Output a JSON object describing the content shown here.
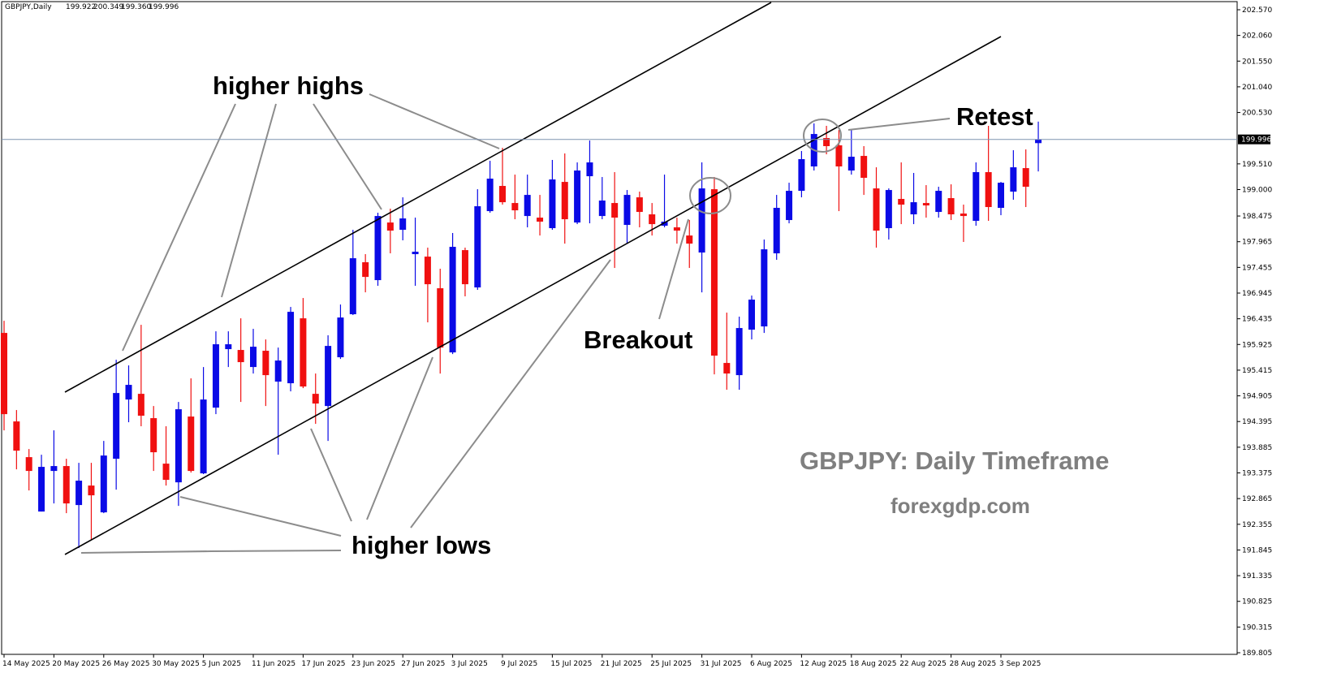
{
  "chart_data": {
    "type": "candlestick",
    "symbol": "GBPJPY,Daily",
    "ohlc_label": [
      "199.922",
      "200.349",
      "199.360",
      "199.996"
    ],
    "categories": [
      "14 May 2025",
      null,
      null,
      null,
      "20 May 2025",
      null,
      null,
      null,
      "26 May 2025",
      null,
      null,
      null,
      "30 May 2025",
      null,
      null,
      null,
      "5 Jun 2025",
      null,
      null,
      null,
      "11 Jun 2025",
      null,
      null,
      null,
      "17 Jun 2025",
      null,
      null,
      null,
      "23 Jun 2025",
      null,
      null,
      null,
      "27 Jun 2025",
      null,
      null,
      null,
      "3 Jul 2025",
      null,
      null,
      null,
      "9 Jul 2025",
      null,
      null,
      null,
      "15 Jul 2025",
      null,
      null,
      null,
      "21 Jul 2025",
      null,
      null,
      null,
      "25 Jul 2025",
      null,
      null,
      null,
      "31 Jul 2025",
      null,
      null,
      null,
      "6 Aug 2025",
      null,
      null,
      null,
      "12 Aug 2025",
      null,
      null,
      null,
      "18 Aug 2025",
      null,
      null,
      null,
      "22 Aug 2025",
      null,
      null,
      null,
      "28 Aug 2025",
      null,
      null,
      null,
      "3 Sep 2025",
      null,
      null,
      null
    ],
    "ohlc": [
      [
        196.154,
        196.396,
        194.22,
        194.542
      ],
      [
        194.397,
        194.623,
        193.446,
        193.817
      ],
      [
        193.688,
        193.849,
        193.027,
        193.414
      ],
      [
        192.608,
        193.736,
        192.608,
        193.495
      ],
      [
        193.414,
        194.22,
        192.769,
        193.511
      ],
      [
        193.511,
        193.656,
        192.576,
        192.769
      ],
      [
        192.737,
        193.575,
        191.883,
        193.221
      ],
      [
        193.124,
        193.575,
        192.044,
        192.93
      ],
      [
        192.592,
        194.01,
        192.576,
        193.72
      ],
      [
        193.656,
        195.622,
        193.043,
        194.961
      ],
      [
        194.832,
        195.509,
        194.381,
        195.123
      ],
      [
        194.945,
        196.315,
        194.301,
        194.51
      ],
      [
        194.462,
        194.703,
        193.414,
        193.785
      ],
      [
        193.559,
        194.301,
        193.124,
        193.237
      ],
      [
        193.188,
        194.784,
        192.721,
        194.639
      ],
      [
        194.494,
        195.252,
        193.382,
        193.414
      ],
      [
        193.366,
        195.477,
        193.35,
        194.832
      ],
      [
        194.671,
        196.186,
        194.542,
        195.929
      ],
      [
        195.832,
        196.186,
        195.477,
        195.929
      ],
      [
        195.816,
        196.444,
        194.784,
        195.574
      ],
      [
        195.477,
        196.235,
        195.348,
        195.88
      ],
      [
        195.8,
        196.025,
        194.703,
        195.316
      ],
      [
        195.187,
        195.864,
        193.736,
        195.606
      ],
      [
        195.155,
        196.67,
        194.994,
        196.573
      ],
      [
        196.444,
        196.847,
        195.058,
        195.09
      ],
      [
        194.945,
        195.348,
        194.349,
        194.752
      ],
      [
        194.703,
        196.106,
        194.01,
        195.896
      ],
      [
        195.671,
        196.718,
        195.638,
        196.46
      ],
      [
        196.525,
        198.201,
        196.509,
        197.637
      ],
      [
        197.557,
        197.718,
        196.96,
        197.266
      ],
      [
        197.202,
        198.54,
        197.089,
        198.475
      ],
      [
        198.346,
        198.62,
        197.734,
        198.185
      ],
      [
        198.201,
        198.846,
        197.992,
        198.427
      ],
      [
        197.718,
        198.443,
        197.089,
        197.766
      ],
      [
        197.669,
        197.847,
        196.364,
        197.121
      ],
      [
        197.041,
        197.428,
        195.348,
        195.864
      ],
      [
        195.767,
        198.137,
        195.735,
        197.863
      ],
      [
        197.798,
        197.847,
        196.88,
        197.121
      ],
      [
        197.057,
        199.007,
        197.009,
        198.669
      ],
      [
        198.572,
        199.571,
        198.54,
        199.217
      ],
      [
        199.072,
        199.829,
        198.701,
        198.749
      ],
      [
        198.733,
        199.297,
        198.411,
        198.588
      ],
      [
        198.475,
        199.297,
        198.25,
        198.894
      ],
      [
        198.443,
        198.894,
        198.088,
        198.363
      ],
      [
        198.234,
        199.588,
        198.201,
        199.201
      ],
      [
        199.152,
        199.717,
        197.927,
        198.411
      ],
      [
        198.346,
        199.539,
        198.314,
        199.378
      ],
      [
        199.265,
        199.974,
        198.33,
        199.539
      ],
      [
        198.475,
        199.249,
        198.411,
        198.782
      ],
      [
        198.733,
        199.346,
        197.444,
        198.443
      ],
      [
        198.298,
        198.991,
        197.927,
        198.894
      ],
      [
        198.846,
        198.959,
        198.25,
        198.556
      ],
      [
        198.508,
        198.733,
        198.088,
        198.314
      ],
      [
        198.282,
        199.297,
        198.25,
        198.363
      ],
      [
        198.25,
        198.443,
        197.927,
        198.185
      ],
      [
        198.088,
        198.395,
        197.444,
        197.927
      ],
      [
        197.75,
        199.539,
        196.96,
        199.023
      ],
      [
        199.007,
        199.249,
        195.332,
        195.703
      ],
      [
        195.558,
        196.557,
        195.026,
        195.348
      ],
      [
        195.316,
        196.477,
        195.026,
        196.251
      ],
      [
        196.219,
        196.896,
        196.025,
        196.815
      ],
      [
        196.283,
        198.008,
        196.154,
        197.814
      ],
      [
        197.734,
        198.894,
        197.605,
        198.637
      ],
      [
        198.395,
        199.136,
        198.33,
        198.975
      ],
      [
        198.975,
        199.765,
        198.846,
        199.604
      ],
      [
        199.459,
        200.313,
        199.378,
        200.103
      ],
      [
        200.023,
        200.265,
        199.7,
        199.862
      ],
      [
        199.878,
        200.184,
        198.572,
        199.459
      ],
      [
        199.378,
        200.184,
        199.297,
        199.652
      ],
      [
        199.668,
        199.862,
        198.894,
        199.233
      ],
      [
        199.023,
        199.442,
        197.847,
        198.185
      ],
      [
        198.234,
        199.023,
        198.008,
        198.991
      ],
      [
        198.814,
        199.539,
        198.314,
        198.701
      ],
      [
        198.508,
        199.33,
        198.314,
        198.749
      ],
      [
        198.733,
        199.088,
        198.443,
        198.685
      ],
      [
        198.556,
        199.056,
        198.443,
        198.975
      ],
      [
        198.83,
        199.104,
        198.395,
        198.508
      ],
      [
        198.524,
        198.701,
        197.96,
        198.475
      ],
      [
        198.379,
        199.539,
        198.282,
        199.346
      ],
      [
        199.346,
        200.265,
        198.379,
        198.653
      ],
      [
        198.637,
        199.152,
        198.491,
        199.136
      ],
      [
        198.959,
        199.781,
        198.798,
        199.442
      ],
      [
        199.426,
        199.797,
        198.653,
        199.056
      ],
      [
        199.922,
        200.349,
        199.36,
        199.996
      ]
    ],
    "bull_color": "#0a0ae6",
    "bear_color": "#f01010",
    "ylim": [
      189.773,
      202.731
    ],
    "yticks": [
      {
        "value": 202.57,
        "label": "202.570"
      },
      {
        "value": 202.06,
        "label": "202.060"
      },
      {
        "value": 201.55,
        "label": "201.550"
      },
      {
        "value": 201.04,
        "label": "201.040"
      },
      {
        "value": 200.53,
        "label": "200.530"
      },
      {
        "value": 199.51,
        "label": "199.510"
      },
      {
        "value": 199.0,
        "label": "199.000"
      },
      198.475,
      197.965,
      197.455,
      196.945,
      196.435,
      195.925,
      195.415,
      194.905,
      194.395,
      193.885,
      193.375,
      192.865,
      192.355,
      191.845,
      191.335,
      190.825,
      190.315,
      189.805
    ],
    "current_price": 199.996,
    "annotations": [
      "higher highs",
      "higher lows",
      "Breakout",
      "Retest"
    ],
    "watermark": "GBPJPY: Daily Timeframe",
    "source": "forexgdp.com"
  }
}
